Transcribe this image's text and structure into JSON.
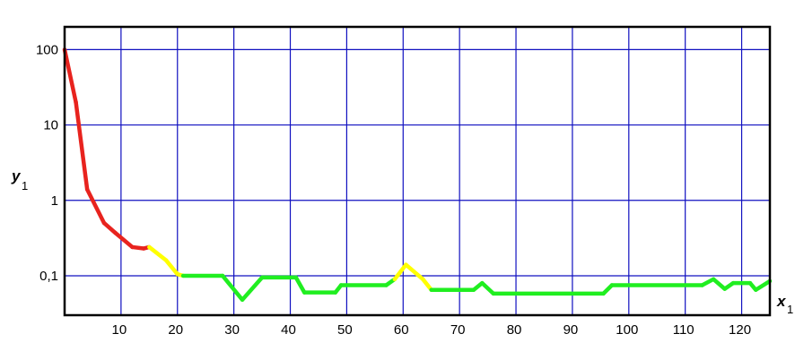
{
  "chart_data": {
    "type": "line",
    "title": "",
    "xlabel": "x",
    "xlabel_sub": "1",
    "ylabel": "y",
    "ylabel_sub": "1",
    "y_scale": "log",
    "xlim": [
      0,
      125
    ],
    "ylim": [
      0.03,
      200
    ],
    "x_ticks": [
      10,
      20,
      30,
      40,
      50,
      60,
      70,
      80,
      90,
      100,
      110,
      120
    ],
    "x_tick_labels": [
      "10",
      "20",
      "30",
      "40",
      "50",
      "60",
      "70",
      "80",
      "90",
      "100",
      "110",
      "120"
    ],
    "x_gridlines": [
      0,
      10,
      20,
      30,
      40,
      50,
      60,
      70,
      80,
      90,
      100,
      110,
      120
    ],
    "y_ticks": [
      0.1,
      1,
      10,
      100
    ],
    "y_tick_labels": [
      "0,1",
      "1",
      "10",
      "100"
    ],
    "grid": true,
    "grid_color": "#1010c0",
    "colors": {
      "red": "#e8231e",
      "yellow": "#ffff00",
      "green": "#20ee20"
    },
    "series": [
      {
        "values": [
          [
            0,
            100,
            "red"
          ],
          [
            2,
            20,
            "red"
          ],
          [
            4,
            1.4,
            "red"
          ],
          [
            7,
            0.5,
            "red"
          ],
          [
            9,
            0.37,
            "red"
          ],
          [
            12,
            0.24,
            "red"
          ],
          [
            14,
            0.23,
            "red"
          ],
          [
            15,
            0.24,
            "yellow"
          ],
          [
            18,
            0.16,
            "yellow"
          ],
          [
            20,
            0.105,
            "yellow"
          ],
          [
            21,
            0.1,
            "green"
          ],
          [
            28,
            0.1,
            "green"
          ],
          [
            31.5,
            0.048,
            "green"
          ],
          [
            35,
            0.095,
            "green"
          ],
          [
            41,
            0.095,
            "green"
          ],
          [
            42.5,
            0.06,
            "green"
          ],
          [
            48,
            0.06,
            "green"
          ],
          [
            49,
            0.075,
            "green"
          ],
          [
            57,
            0.075,
            "green"
          ],
          [
            58.5,
            0.09,
            "yellow"
          ],
          [
            60.5,
            0.14,
            "yellow"
          ],
          [
            63.5,
            0.09,
            "yellow"
          ],
          [
            65,
            0.065,
            "green"
          ],
          [
            72.5,
            0.065,
            "green"
          ],
          [
            74,
            0.08,
            "green"
          ],
          [
            76,
            0.058,
            "green"
          ],
          [
            95.5,
            0.058,
            "green"
          ],
          [
            97,
            0.075,
            "green"
          ],
          [
            113,
            0.075,
            "green"
          ],
          [
            115,
            0.09,
            "green"
          ],
          [
            117,
            0.067,
            "green"
          ],
          [
            118.5,
            0.08,
            "green"
          ],
          [
            121.5,
            0.08,
            "green"
          ],
          [
            122.5,
            0.065,
            "green"
          ],
          [
            125,
            0.085,
            "green"
          ]
        ]
      }
    ]
  }
}
